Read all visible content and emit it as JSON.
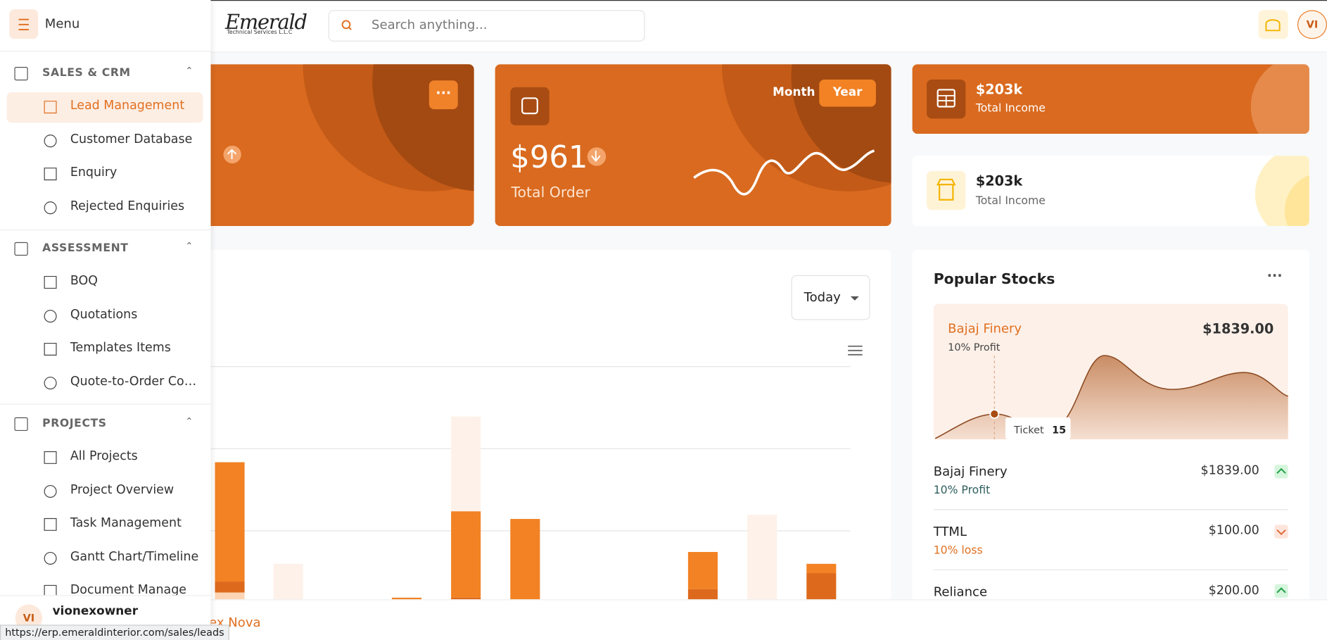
{
  "header": {
    "logo": "Emerald",
    "logo_sub": "Technical Services L.L.C",
    "search_placeholder": "Search anything...",
    "avatar": "VI"
  },
  "sidebar": {
    "menu": "Menu",
    "sections": [
      {
        "title": "SALES & CRM",
        "items": [
          "Lead Management",
          "Customer Database",
          "Enquiry",
          "Rejected Enquiries"
        ]
      },
      {
        "title": "ASSESSMENT",
        "items": [
          "BOQ",
          "Quotations",
          "Templates Items",
          "Quote-to-Order Co…"
        ]
      },
      {
        "title": "PROJECTS",
        "items": [
          "All Projects",
          "Project Overview",
          "Task Management",
          "Gantt Chart/Timeline",
          "Document Manage"
        ]
      }
    ],
    "user": {
      "initials": "VI",
      "name": "vionexowner"
    }
  },
  "cards": {
    "order": {
      "toggle": [
        "Month",
        "Year"
      ],
      "value": "$961",
      "label": "Total Order"
    },
    "income_top": {
      "value": "$203k",
      "label": "Total Income"
    },
    "income_bottom": {
      "value": "$203k",
      "label": "Total Income"
    }
  },
  "chart_panel": {
    "filter": "Today"
  },
  "stocks": {
    "title": "Popular Stocks",
    "featured": {
      "name": "Bajaj Finery",
      "price": "$1839.00",
      "change": "10% Profit",
      "tooltip_label": "Ticket",
      "tooltip_value": "15"
    },
    "list": [
      {
        "name": "Bajaj Finery",
        "price": "$1839.00",
        "change": "10% Profit"
      },
      {
        "name": "TTML",
        "price": "$100.00",
        "change": "10% loss"
      },
      {
        "name": "Reliance",
        "price": "$200.00"
      }
    ]
  },
  "footer_text": "ex Nova",
  "status_url": "https://erp.emeraldinterior.com/sales/leads"
}
